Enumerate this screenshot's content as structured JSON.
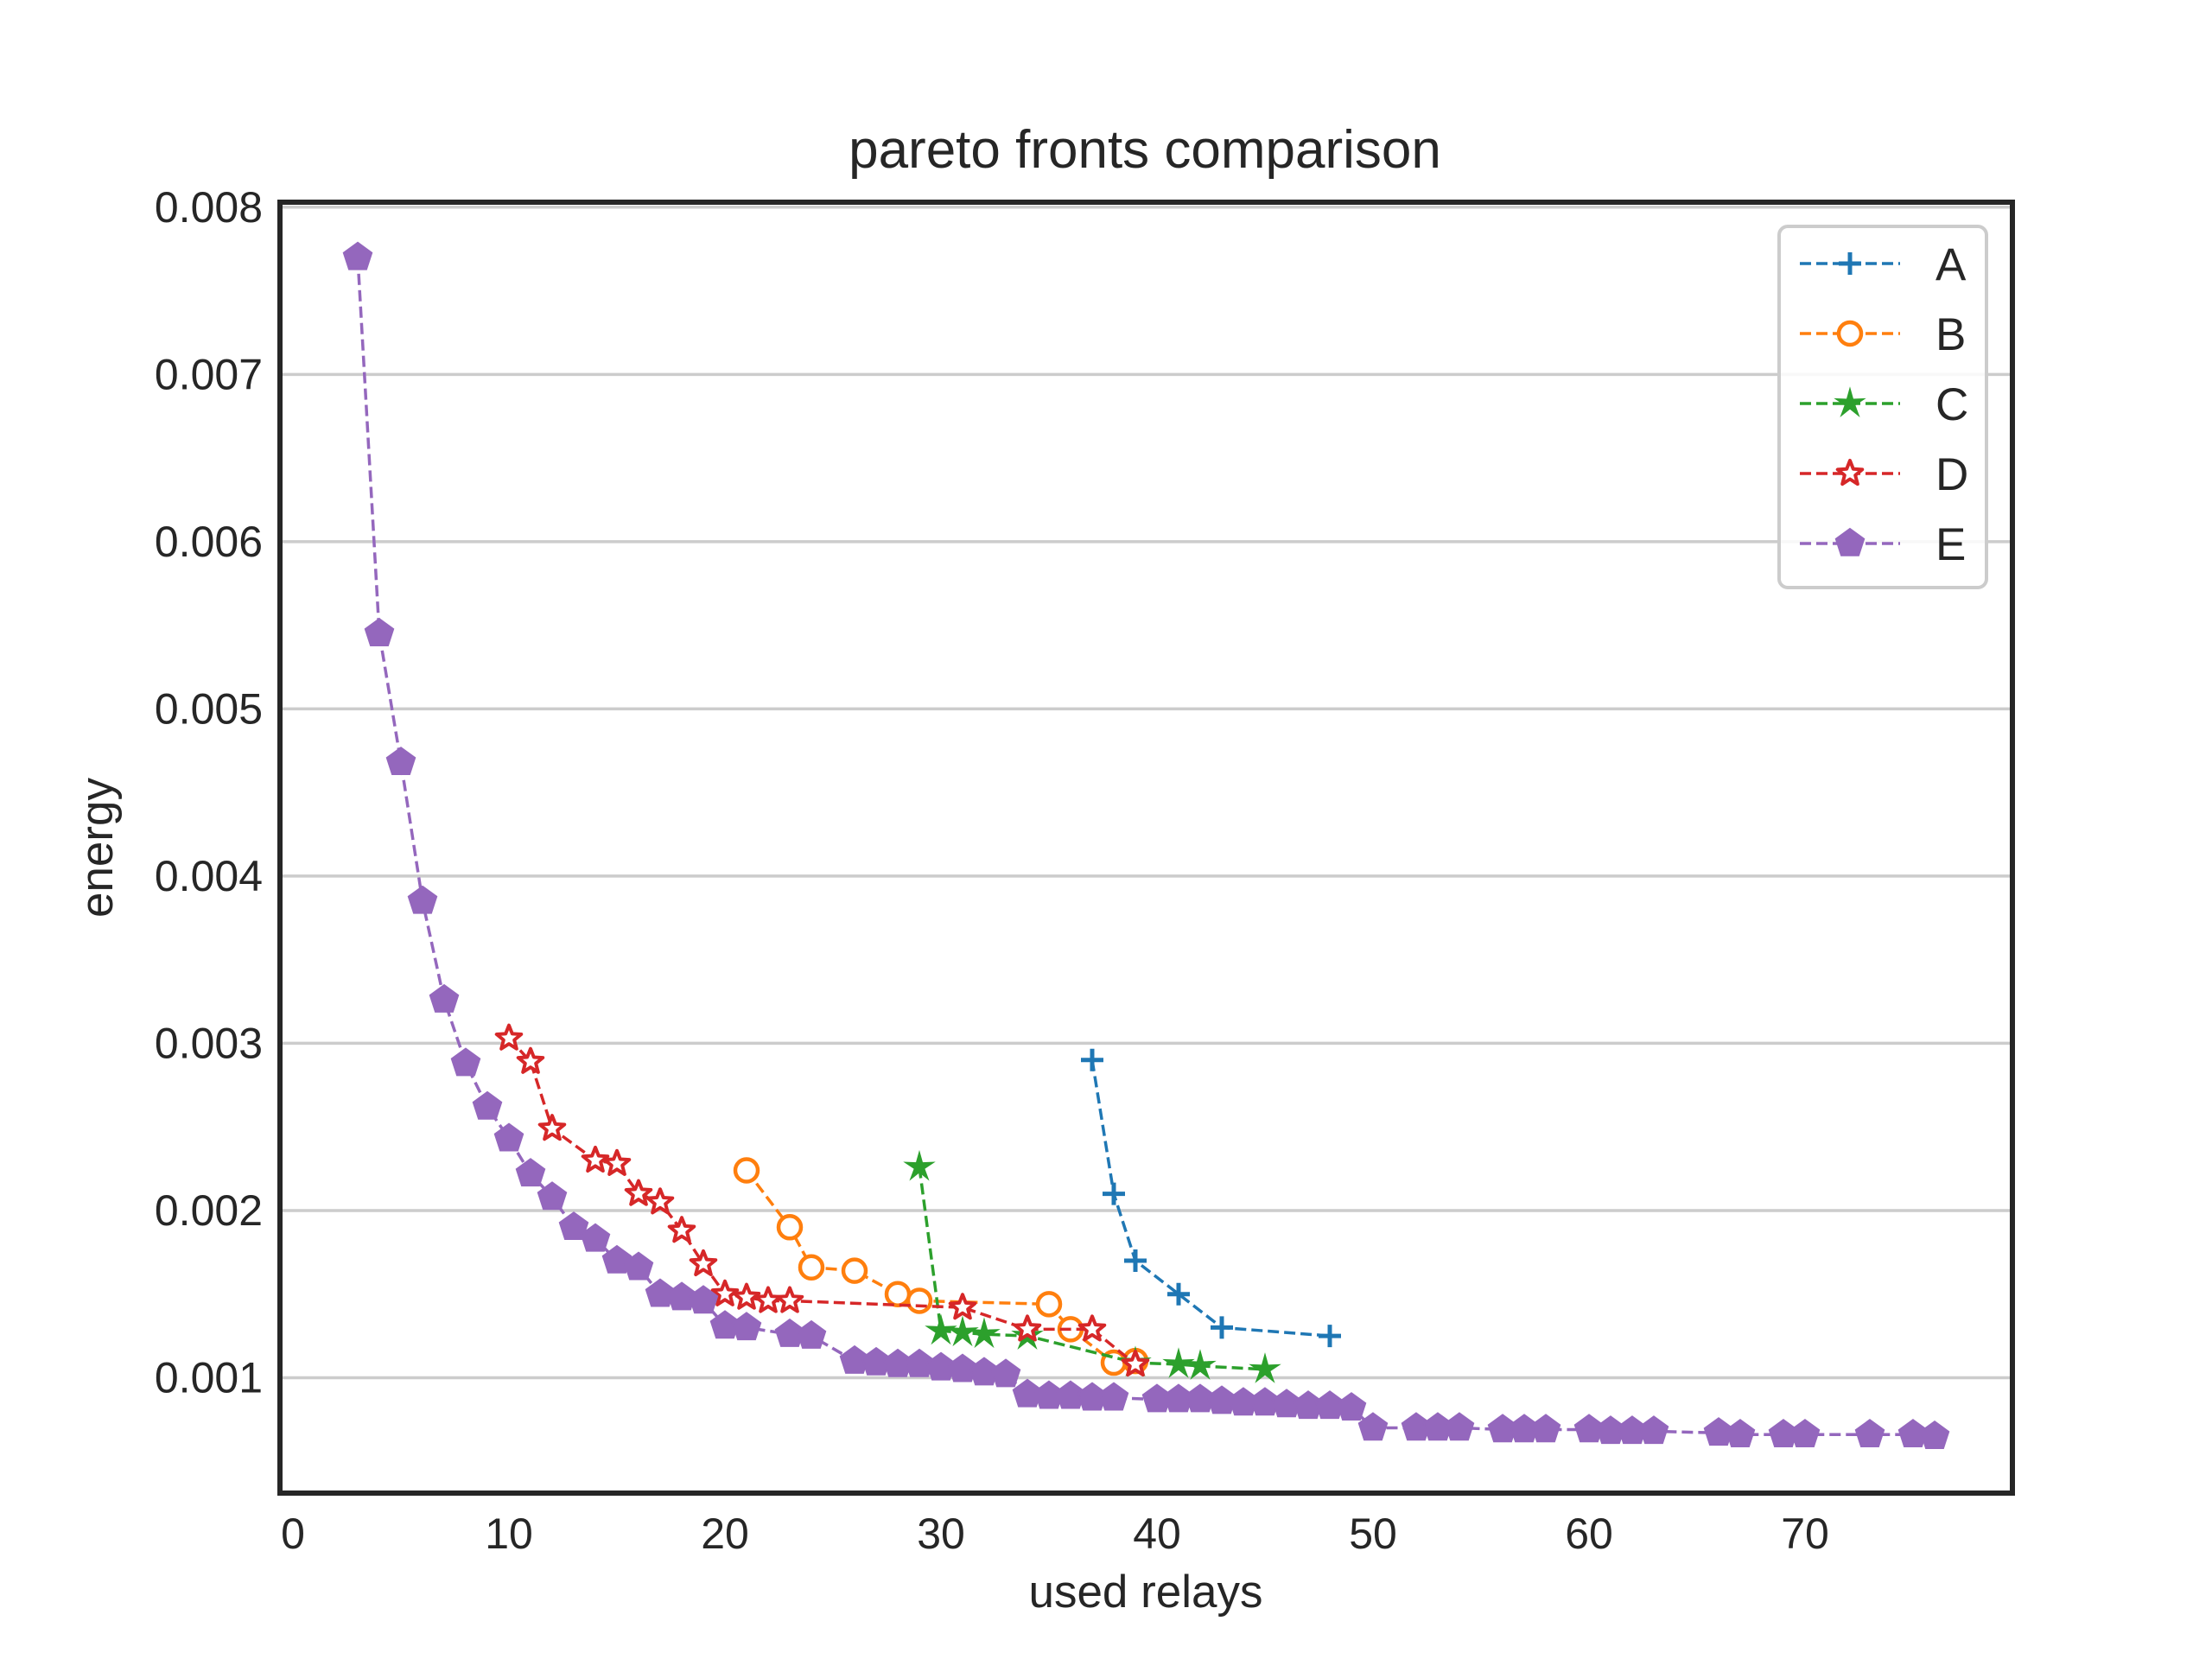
{
  "chart_data": {
    "type": "line",
    "title": "pareto fronts comparison",
    "xlabel": "used relays",
    "ylabel": "energy",
    "xlim": [
      -0.6,
      79.6
    ],
    "ylim": [
      0.00031,
      0.00803
    ],
    "xticks": [
      0,
      10,
      20,
      30,
      40,
      50,
      60,
      70
    ],
    "yticks": [
      0.001,
      0.002,
      0.003,
      0.004,
      0.005,
      0.006,
      0.007,
      0.008
    ],
    "xtick_labels": [
      "0",
      "10",
      "20",
      "30",
      "40",
      "50",
      "60",
      "70"
    ],
    "ytick_labels": [
      "0.001",
      "0.002",
      "0.003",
      "0.004",
      "0.005",
      "0.006",
      "0.007",
      "0.008"
    ],
    "grid": "horizontal",
    "legend": "top-right",
    "series": [
      {
        "name": "A",
        "color": "#1f77b4",
        "marker": "plus",
        "line": "dashed",
        "x": [
          37,
          38,
          39,
          41,
          43,
          48
        ],
        "y": [
          0.0029,
          0.0021,
          0.0017,
          0.0015,
          0.0013,
          0.00125
        ]
      },
      {
        "name": "B",
        "color": "#ff7f0e",
        "marker": "circle",
        "line": "dashed",
        "x": [
          21,
          23,
          24,
          26,
          28,
          29,
          35,
          36,
          38,
          39
        ],
        "y": [
          0.00224,
          0.0019,
          0.00166,
          0.00164,
          0.0015,
          0.00146,
          0.00144,
          0.00129,
          0.00109,
          0.0011
        ]
      },
      {
        "name": "C",
        "color": "#2ca02c",
        "marker": "star",
        "line": "dashed",
        "x": [
          29,
          30,
          31,
          32,
          34,
          39,
          41,
          42,
          45
        ],
        "y": [
          0.00226,
          0.00128,
          0.00127,
          0.00126,
          0.00125,
          0.00109,
          0.00108,
          0.00107,
          0.00105
        ]
      },
      {
        "name": "D",
        "color": "#d62728",
        "marker": "star-outline",
        "line": "dashed",
        "x": [
          10,
          11,
          12,
          14,
          15,
          16,
          17,
          18,
          19,
          20,
          21,
          22,
          23,
          31,
          34,
          37,
          39
        ],
        "y": [
          0.00303,
          0.00289,
          0.00249,
          0.0023,
          0.00228,
          0.0021,
          0.00205,
          0.00188,
          0.00168,
          0.0015,
          0.00148,
          0.00146,
          0.00146,
          0.00142,
          0.00129,
          0.00129,
          0.00108
        ]
      },
      {
        "name": "E",
        "color": "#9467bd",
        "marker": "pentagon",
        "line": "dashed",
        "x": [
          3,
          4,
          5,
          6,
          7,
          8,
          9,
          10,
          11,
          12,
          13,
          14,
          15,
          16,
          17,
          18,
          19,
          20,
          21,
          23,
          24,
          26,
          27,
          28,
          29,
          30,
          31,
          32,
          33,
          34,
          35,
          36,
          37,
          38,
          40,
          41,
          42,
          43,
          44,
          45,
          46,
          47,
          48,
          49,
          50,
          52,
          53,
          54,
          56,
          57,
          58,
          60,
          61,
          62,
          63,
          66,
          67,
          69,
          70,
          73,
          75,
          76
        ],
        "y": [
          0.0077,
          0.00545,
          0.00468,
          0.00385,
          0.00326,
          0.00288,
          0.00262,
          0.00243,
          0.00222,
          0.00208,
          0.0019,
          0.00183,
          0.0017,
          0.00166,
          0.0015,
          0.00148,
          0.00146,
          0.00131,
          0.0013,
          0.00126,
          0.00125,
          0.0011,
          0.00109,
          0.00108,
          0.00108,
          0.00106,
          0.00105,
          0.00103,
          0.00102,
          0.0009,
          0.00089,
          0.00089,
          0.00088,
          0.00088,
          0.00087,
          0.00087,
          0.00087,
          0.00086,
          0.00085,
          0.00085,
          0.00084,
          0.00083,
          0.00083,
          0.00082,
          0.0007,
          0.0007,
          0.0007,
          0.0007,
          0.00069,
          0.00069,
          0.00069,
          0.00069,
          0.00068,
          0.00068,
          0.00068,
          0.00067,
          0.00066,
          0.00066,
          0.00066,
          0.00066,
          0.00066,
          0.00065
        ]
      }
    ]
  }
}
